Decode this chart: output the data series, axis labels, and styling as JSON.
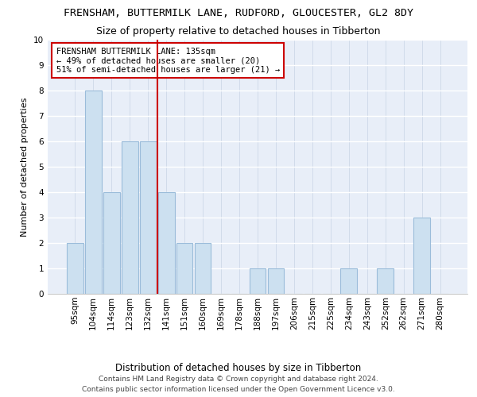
{
  "title1": "FRENSHAM, BUTTERMILK LANE, RUDFORD, GLOUCESTER, GL2 8DY",
  "title2": "Size of property relative to detached houses in Tibberton",
  "xlabel": "Distribution of detached houses by size in Tibberton",
  "ylabel": "Number of detached properties",
  "categories": [
    "95sqm",
    "104sqm",
    "114sqm",
    "123sqm",
    "132sqm",
    "141sqm",
    "151sqm",
    "160sqm",
    "169sqm",
    "178sqm",
    "188sqm",
    "197sqm",
    "206sqm",
    "215sqm",
    "225sqm",
    "234sqm",
    "243sqm",
    "252sqm",
    "262sqm",
    "271sqm",
    "280sqm"
  ],
  "values": [
    2,
    8,
    4,
    6,
    6,
    4,
    2,
    2,
    0,
    0,
    1,
    1,
    0,
    0,
    0,
    1,
    0,
    1,
    0,
    3,
    0
  ],
  "bar_color": "#cce0f0",
  "bar_edge_color": "#9bbcda",
  "marker_line_color": "#cc0000",
  "annotation_box_color": "#ffffff",
  "annotation_box_edge": "#cc0000",
  "marker_label_line1": "FRENSHAM BUTTERMILK LANE: 135sqm",
  "marker_label_line2": "← 49% of detached houses are smaller (20)",
  "marker_label_line3": "51% of semi-detached houses are larger (21) →",
  "ylim": [
    0,
    10
  ],
  "yticks": [
    0,
    1,
    2,
    3,
    4,
    5,
    6,
    7,
    8,
    9,
    10
  ],
  "bg_color": "#e8eef8",
  "grid_color": "#d0d8e8",
  "footer": "Contains HM Land Registry data © Crown copyright and database right 2024.\nContains public sector information licensed under the Open Government Licence v3.0.",
  "title1_fontsize": 9.5,
  "title2_fontsize": 9,
  "xlabel_fontsize": 8.5,
  "ylabel_fontsize": 8,
  "tick_fontsize": 7.5,
  "footer_fontsize": 6.5,
  "annotation_fontsize": 7.5
}
